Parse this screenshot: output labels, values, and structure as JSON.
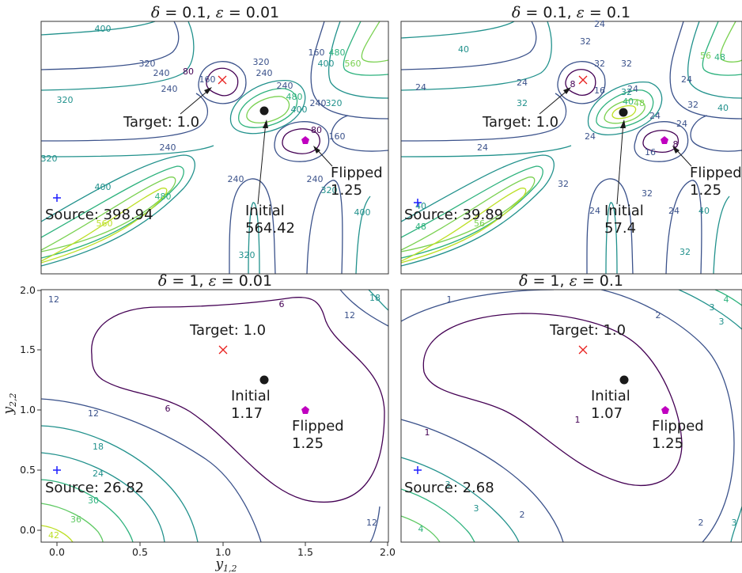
{
  "chart_data": [
    {
      "type": "contour",
      "title": "δ = 0.1, ε = 0.01",
      "title_parts": {
        "delta_sym": "δ",
        "delta_eq": " = 0.1, ",
        "eps_sym": "ε",
        "eps_eq": " = 0.01"
      },
      "xlim": [
        -0.1,
        2.0
      ],
      "ylim": [
        -0.1,
        2.0
      ],
      "contour_levels": [
        80,
        160,
        240,
        320,
        400,
        480,
        560
      ],
      "points": {
        "source": {
          "x": 0.0,
          "y": 0.5,
          "label": "Source: 398.94"
        },
        "target": {
          "x": 1.0,
          "y": 1.5,
          "label": "Target: 1.0"
        },
        "initial": {
          "x": 1.25,
          "y": 1.25,
          "label": [
            "Initial",
            "564.42"
          ]
        },
        "flipped": {
          "x": 1.5,
          "y": 1.0,
          "label": [
            "Flipped",
            "1.25"
          ]
        }
      }
    },
    {
      "type": "contour",
      "title": "δ = 0.1, ε = 0.1",
      "title_parts": {
        "delta_sym": "δ",
        "delta_eq": " = 0.1, ",
        "eps_sym": "ε",
        "eps_eq": " = 0.1"
      },
      "xlim": [
        -0.1,
        2.0
      ],
      "ylim": [
        -0.1,
        2.0
      ],
      "contour_levels": [
        8,
        16,
        24,
        32,
        40,
        48,
        56
      ],
      "points": {
        "source": {
          "x": 0.0,
          "y": 0.5,
          "label": "Source: 39.89"
        },
        "target": {
          "x": 1.0,
          "y": 1.5,
          "label": "Target: 1.0"
        },
        "initial": {
          "x": 1.25,
          "y": 1.25,
          "label": [
            "Initial",
            "57.4"
          ]
        },
        "flipped": {
          "x": 1.5,
          "y": 1.0,
          "label": [
            "Flipped",
            "1.25"
          ]
        }
      }
    },
    {
      "type": "contour",
      "title": "δ = 1, ε = 0.01",
      "title_parts": {
        "delta_sym": "δ",
        "delta_eq": " = 1, ",
        "eps_sym": "ε",
        "eps_eq": " = 0.01"
      },
      "xlim": [
        -0.1,
        2.0
      ],
      "ylim": [
        -0.1,
        2.0
      ],
      "contour_levels": [
        6,
        12,
        18,
        24,
        30,
        36,
        42
      ],
      "xticks": [
        "0.0",
        "0.5",
        "1.0",
        "1.5",
        "2.0"
      ],
      "yticks": [
        "0.0",
        "0.5",
        "1.0",
        "1.5",
        "2.0"
      ],
      "xlabel": {
        "base": "y",
        "sub": "1,2"
      },
      "ylabel": {
        "base": "y",
        "sub": "2,2"
      },
      "points": {
        "source": {
          "x": 0.0,
          "y": 0.5,
          "label": "Source: 26.82"
        },
        "target": {
          "x": 1.0,
          "y": 1.5,
          "label": "Target: 1.0"
        },
        "initial": {
          "x": 1.25,
          "y": 1.25,
          "label": [
            "Initial",
            "1.17"
          ]
        },
        "flipped": {
          "x": 1.5,
          "y": 1.0,
          "label": [
            "Flipped",
            "1.25"
          ]
        }
      }
    },
    {
      "type": "contour",
      "title": "δ = 1, ε = 0.1",
      "title_parts": {
        "delta_sym": "δ",
        "delta_eq": " = 1, ",
        "eps_sym": "ε",
        "eps_eq": " = 0.1"
      },
      "xlim": [
        -0.1,
        2.0
      ],
      "ylim": [
        -0.1,
        2.0
      ],
      "contour_levels": [
        1,
        2,
        3,
        4
      ],
      "points": {
        "source": {
          "x": 0.0,
          "y": 0.5,
          "label": "Source: 2.68"
        },
        "target": {
          "x": 1.0,
          "y": 1.5,
          "label": "Target: 1.0"
        },
        "initial": {
          "x": 1.25,
          "y": 1.25,
          "label": [
            "Initial",
            "1.07"
          ]
        },
        "flipped": {
          "x": 1.5,
          "y": 1.0,
          "label": [
            "Flipped",
            "1.25"
          ]
        }
      }
    }
  ],
  "colors": {
    "source_marker": "#1f1fff",
    "target_marker": "#e8201e",
    "initial_marker": "#1a1a1a",
    "flipped_marker": "#c000c0",
    "contour_low": "#440154",
    "contour_mid": "#21918c",
    "contour_high": "#bddf26"
  }
}
